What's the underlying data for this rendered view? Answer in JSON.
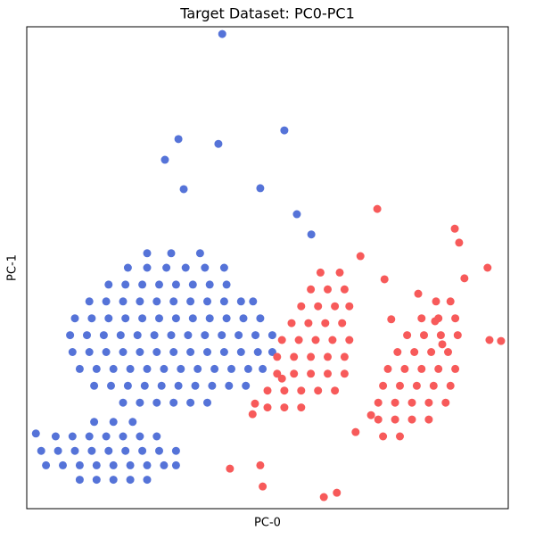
{
  "chart_data": {
    "type": "scatter",
    "title": "Target Dataset: PC0-PC1",
    "x_label": "PC-0",
    "y_label": "PC-1",
    "xlim": [
      0,
      100
    ],
    "ylim": [
      0,
      100
    ],
    "series": [
      {
        "color": "#5573d8",
        "x": [
          20,
          23.5,
          27,
          30.5,
          34,
          37.5,
          14,
          17.5,
          21,
          24.5,
          28,
          31.5,
          35,
          38.5,
          42,
          45.5,
          11,
          14.5,
          18,
          21.5,
          25,
          28.5,
          32,
          35.5,
          39,
          42.5,
          46,
          49,
          9.5,
          13,
          16.5,
          20,
          23.5,
          27,
          30.5,
          34,
          37.5,
          41,
          44.5,
          48,
          51,
          9,
          12.5,
          16,
          19.5,
          23,
          26.5,
          30,
          33.5,
          37,
          40.5,
          44,
          47.5,
          51,
          10,
          13.5,
          17,
          20.5,
          24,
          27.5,
          31,
          34.5,
          38,
          41.5,
          45,
          48.5,
          13,
          16.5,
          20,
          23.5,
          27,
          30.5,
          34,
          37.5,
          41,
          44.5,
          47,
          17,
          20.5,
          24,
          27.5,
          31,
          34.5,
          38,
          41.5,
          21,
          25,
          29,
          33,
          37,
          41,
          25,
          30,
          36,
          11,
          14.5,
          18,
          21.5,
          25,
          4,
          7.5,
          11,
          14.5,
          18,
          21.5,
          25,
          28.5,
          31,
          3,
          6.5,
          10,
          13.5,
          17,
          20.5,
          24,
          27.5,
          31,
          6,
          9.5,
          13,
          16.5,
          20,
          23.5,
          27,
          14,
          18,
          22,
          40.6,
          31.5,
          28.7,
          53.5,
          39.8,
          32.6,
          48.5,
          1.9,
          56.1,
          59.1
        ],
        "y": [
          22,
          22,
          22,
          22,
          22,
          22,
          25.5,
          25.5,
          25.5,
          25.5,
          25.5,
          25.5,
          25.5,
          25.5,
          25.5,
          25.5,
          29,
          29,
          29,
          29,
          29,
          29,
          29,
          29,
          29,
          29,
          29,
          29,
          32.5,
          32.5,
          32.5,
          32.5,
          32.5,
          32.5,
          32.5,
          32.5,
          32.5,
          32.5,
          32.5,
          32.5,
          32.5,
          36,
          36,
          36,
          36,
          36,
          36,
          36,
          36,
          36,
          36,
          36,
          36,
          36,
          39.5,
          39.5,
          39.5,
          39.5,
          39.5,
          39.5,
          39.5,
          39.5,
          39.5,
          39.5,
          39.5,
          39.5,
          43,
          43,
          43,
          43,
          43,
          43,
          43,
          43,
          43,
          43,
          43,
          46.5,
          46.5,
          46.5,
          46.5,
          46.5,
          46.5,
          46.5,
          46.5,
          50,
          50,
          50,
          50,
          50,
          50,
          53,
          53,
          53,
          6,
          6,
          6,
          6,
          6,
          9,
          9,
          9,
          9,
          9,
          9,
          9,
          9,
          9,
          12,
          12,
          12,
          12,
          12,
          12,
          12,
          12,
          12,
          15,
          15,
          15,
          15,
          15,
          15,
          15,
          18,
          18,
          18,
          98.5,
          76.7,
          72.4,
          78.5,
          75.7,
          66.3,
          66.5,
          15.6,
          61.1,
          56.9
        ]
      },
      {
        "color": "#f75a5a",
        "x": [
          50,
          53.5,
          57,
          50,
          53.5,
          57,
          60.5,
          64,
          52,
          55.5,
          59,
          62.5,
          66,
          52,
          55.5,
          59,
          62.5,
          66,
          53,
          56.5,
          60,
          63.5,
          67,
          55,
          58.5,
          62,
          65.5,
          57,
          60.5,
          64,
          67,
          59,
          62.5,
          66,
          61,
          65,
          53,
          46.9,
          47.4,
          72.8,
          69.3,
          74.3,
          42.2,
          48.5,
          49,
          61.7,
          64.4,
          68.3,
          71.5,
          74,
          77.5,
          73,
          76.5,
          80,
          83.5,
          73,
          76.5,
          80,
          83.5,
          87,
          74,
          77.5,
          81,
          84.5,
          88,
          75,
          78.5,
          82,
          85.5,
          89,
          77,
          80.5,
          84,
          87.5,
          79,
          82.5,
          86,
          89.5,
          82,
          85.5,
          89,
          85,
          88,
          89.8,
          90.9,
          95.7,
          88.9,
          96.1,
          98.5,
          86.3,
          84.8,
          75.7,
          81.3
        ],
        "y": [
          21,
          21,
          21,
          24.5,
          24.5,
          24.5,
          24.5,
          24.5,
          28,
          28,
          28,
          28,
          28,
          31.5,
          31.5,
          31.5,
          31.5,
          31.5,
          35,
          35,
          35,
          35,
          35,
          38.5,
          38.5,
          38.5,
          38.5,
          42,
          42,
          42,
          42,
          45.5,
          45.5,
          45.5,
          49,
          49,
          27,
          19.6,
          21.8,
          62.2,
          52.4,
          47.6,
          8.3,
          9,
          4.6,
          2.4,
          3.3,
          15.9,
          19.4,
          15,
          15,
          18.5,
          18.5,
          18.5,
          18.5,
          22,
          22,
          22,
          22,
          22,
          25.5,
          25.5,
          25.5,
          25.5,
          25.5,
          29,
          29,
          29,
          29,
          29,
          32.5,
          32.5,
          32.5,
          32.5,
          36,
          36,
          36,
          36,
          39.5,
          39.5,
          39.5,
          43,
          43,
          55.2,
          47.8,
          50,
          58.1,
          35,
          34.8,
          34.1,
          38.9,
          39.3,
          44.6
        ]
      }
    ]
  }
}
